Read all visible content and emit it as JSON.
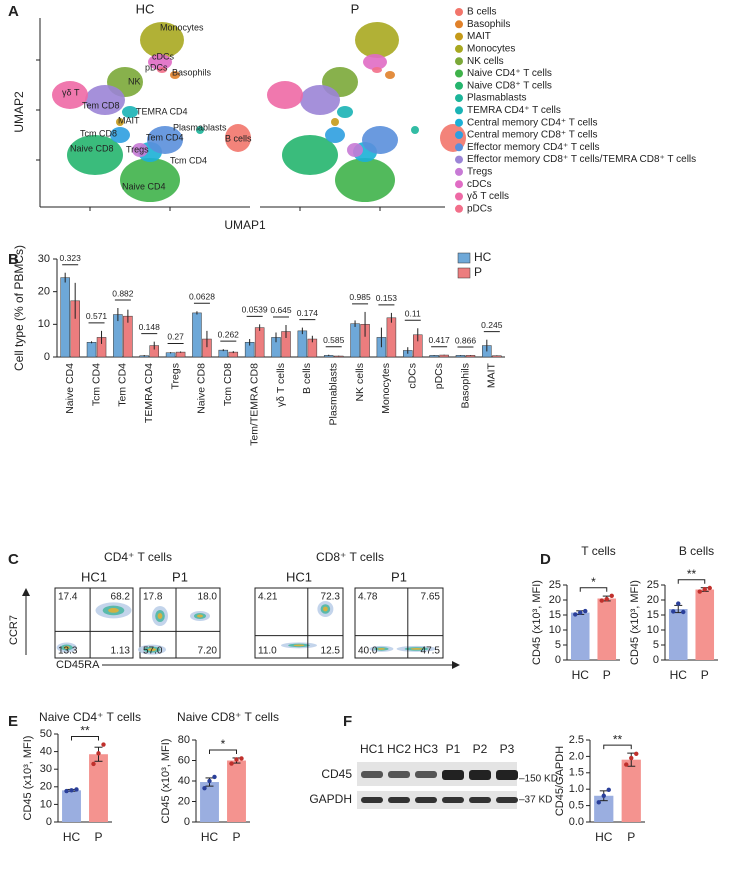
{
  "chart_data": [
    {
      "panel": "A",
      "type": "umap",
      "groups": [
        "HC",
        "P"
      ],
      "xlabel": "UMAP1",
      "ylabel": "UMAP2",
      "cluster_labels": [
        "Monocytes",
        "cDCs",
        "pDCs",
        "Basophils",
        "NK",
        "γδ T",
        "Tem CD8",
        "TEMRA CD4",
        "MAIT",
        "Tcm CD8",
        "Naive CD8",
        "Tregs",
        "Tem CD4",
        "Plasmablasts",
        "B cells",
        "Tcm CD4",
        "Naive CD4"
      ],
      "legend": [
        {
          "name": "B cells",
          "color": "#f2756b"
        },
        {
          "name": "Basophils",
          "color": "#e0812a"
        },
        {
          "name": "MAIT",
          "color": "#c59a19"
        },
        {
          "name": "Monocytes",
          "color": "#a8a820"
        },
        {
          "name": "NK cells",
          "color": "#7ba838"
        },
        {
          "name": "Naive CD4⁺ T cells",
          "color": "#3fb24a"
        },
        {
          "name": "Naive CD8⁺ T cells",
          "color": "#25b56e"
        },
        {
          "name": "Plasmablasts",
          "color": "#1cb59a"
        },
        {
          "name": "TEMRA CD4⁺ T cells",
          "color": "#1ab3b5"
        },
        {
          "name": "Central memory CD4⁺ T cells",
          "color": "#1bb0d6"
        },
        {
          "name": "Central memory CD8⁺ T cells",
          "color": "#2d9fe0"
        },
        {
          "name": "Effector memory CD4⁺ T cells",
          "color": "#5a8fdc"
        },
        {
          "name": "Effector memory CD8⁺ T cells/TEMRA CD8⁺ T cells",
          "color": "#9b84d6"
        },
        {
          "name": "Tregs",
          "color": "#c77ad5"
        },
        {
          "name": "cDCs",
          "color": "#e06cc4"
        },
        {
          "name": "γδ T cells",
          "color": "#ee69a5"
        },
        {
          "name": "pDCs",
          "color": "#f26f8a"
        }
      ]
    },
    {
      "panel": "B",
      "type": "grouped_bar",
      "ylabel": "Cell type (% of PBMCs)",
      "categories": [
        "Naive CD4",
        "Tcm CD4",
        "Tem CD4",
        "TEMRA CD4",
        "Tregs",
        "Naive CD8",
        "Tcm CD8",
        "Tem/TEMRA CD8",
        "γδ T cells",
        "B cells",
        "Plasmablasts",
        "NK cells",
        "Monocytes",
        "cDCs",
        "pDCs",
        "Basophils",
        "MAIT"
      ],
      "series": [
        {
          "name": "HC",
          "color": "#6ea8d8",
          "values": [
            24.3,
            4.5,
            13,
            0.4,
            1.3,
            13.5,
            2.1,
            4.5,
            6,
            8,
            0.5,
            10.2,
            6,
            2,
            0.5,
            0.5,
            3.5
          ],
          "errors": [
            1.5,
            0.3,
            2,
            0.2,
            0.2,
            0.5,
            0.3,
            1,
            1.5,
            1,
            0.2,
            1,
            3,
            1,
            0.1,
            0.1,
            1.8
          ]
        },
        {
          "name": "P",
          "color": "#ec7d7e",
          "values": [
            17.2,
            6,
            12.5,
            3.5,
            1.5,
            5.5,
            1.5,
            9,
            7.8,
            5.5,
            0.3,
            10,
            12,
            6.8,
            0.6,
            0.5,
            0.4
          ],
          "errors": [
            5.5,
            2,
            2,
            1.2,
            0.2,
            2.5,
            0.3,
            1,
            2,
            1,
            0.1,
            3.8,
            1.5,
            2,
            0.1,
            0.1,
            0.1
          ]
        }
      ],
      "p_values": [
        "0.323",
        "0.571",
        "0.882",
        "0.148",
        "0.27",
        "0.0628",
        "0.262",
        "0.0539",
        "0.645",
        "0.174",
        "0.585",
        "0.985",
        "0.153",
        "0.11",
        "0.417",
        "0.866",
        "0.245"
      ],
      "ylim": [
        0,
        30
      ],
      "yticks": [
        0,
        10,
        20,
        30
      ],
      "legend_position": "top-right"
    },
    {
      "panel": "C",
      "type": "flow",
      "groups": [
        "CD4⁺ T cells",
        "CD8⁺ T cells"
      ],
      "xlabel": "CD45RA",
      "ylabel": "CCR7",
      "plots": [
        {
          "name": "HC1",
          "quadrants": [
            "17.4",
            "68.2",
            "13.3",
            "1.13"
          ]
        },
        {
          "name": "P1",
          "quadrants": [
            "17.8",
            "18.0",
            "57.0",
            "7.20"
          ]
        },
        {
          "name": "HC1",
          "quadrants": [
            "4.21",
            "72.3",
            "11.0",
            "12.5"
          ]
        },
        {
          "name": "P1",
          "quadrants": [
            "4.78",
            "7.65",
            "40.0",
            "47.5"
          ]
        }
      ]
    },
    {
      "panel": "D",
      "type": "bar",
      "title": "T cells",
      "ylabel": "CD45 (x10³, MFI)",
      "categories": [
        "HC",
        "P"
      ],
      "colors": [
        "#9aaee0",
        "#f4938f"
      ],
      "values": [
        15.8,
        20.5
      ],
      "errors": [
        0.6,
        0.8
      ],
      "points": [
        [
          15.2,
          15.8,
          16.3
        ],
        [
          19.8,
          20.3,
          21.4
        ]
      ],
      "significance": "*",
      "ylim": [
        0,
        25
      ],
      "yticks": [
        0,
        5,
        10,
        15,
        20,
        25
      ]
    },
    {
      "type": "bar",
      "title": "B cells",
      "ylabel": "CD45 (x10³, MFI)",
      "categories": [
        "HC",
        "P"
      ],
      "colors": [
        "#9aaee0",
        "#f4938f"
      ],
      "values": [
        17,
        23.5
      ],
      "errors": [
        1.2,
        0.6
      ],
      "points": [
        [
          16.2,
          18.8,
          16
        ],
        [
          22.8,
          23.6,
          24
        ]
      ],
      "significance": "**",
      "ylim": [
        0,
        25
      ],
      "yticks": [
        0,
        5,
        10,
        15,
        20,
        25
      ]
    },
    {
      "panel": "E",
      "type": "bar",
      "title": "Naive CD4⁺ T cells",
      "ylabel": "CD45 (x10³, MFI)",
      "categories": [
        "HC",
        "P"
      ],
      "colors": [
        "#9aaee0",
        "#f4938f"
      ],
      "values": [
        18,
        38.5
      ],
      "errors": [
        0.5,
        4
      ],
      "points": [
        [
          17.6,
          18,
          18.5
        ],
        [
          33,
          39,
          44
        ]
      ],
      "significance": "**",
      "ylim": [
        0,
        50
      ],
      "yticks": [
        0,
        10,
        20,
        30,
        40,
        50
      ]
    },
    {
      "type": "bar",
      "title": "Naive CD8⁺ T cells",
      "ylabel": "CD45 (x10³, MFI)",
      "categories": [
        "HC",
        "P"
      ],
      "colors": [
        "#9aaee0",
        "#f4938f"
      ],
      "values": [
        39,
        60
      ],
      "errors": [
        4,
        2.5
      ],
      "points": [
        [
          33,
          40,
          44
        ],
        [
          57,
          61,
          62
        ]
      ],
      "significance": "*",
      "ylim": [
        0,
        80
      ],
      "yticks": [
        0,
        20,
        40,
        60,
        80
      ]
    },
    {
      "panel": "F",
      "type": "bar",
      "ylabel": "CD45/GAPDH",
      "categories": [
        "HC",
        "P"
      ],
      "colors": [
        "#9aaee0",
        "#f4938f"
      ],
      "values": [
        0.8,
        1.9
      ],
      "errors": [
        0.15,
        0.2
      ],
      "points": [
        [
          0.6,
          0.8,
          0.98
        ],
        [
          1.75,
          1.95,
          2.08
        ]
      ],
      "significance": "**",
      "ylim": [
        0,
        2.5
      ],
      "yticks": [
        {
          "value": 0,
          "label": "0.0"
        },
        0.5,
        {
          "value": 1,
          "label": "1.0"
        },
        1.5,
        {
          "value": 2,
          "label": "2.0"
        },
        2.5
      ],
      "blot": {
        "lanes": [
          "HC1",
          "HC2",
          "HC3",
          "P1",
          "P2",
          "P3"
        ],
        "rows": [
          "CD45",
          "GAPDH"
        ],
        "markers": [
          "–150 KD",
          "–37 KD"
        ]
      }
    }
  ]
}
